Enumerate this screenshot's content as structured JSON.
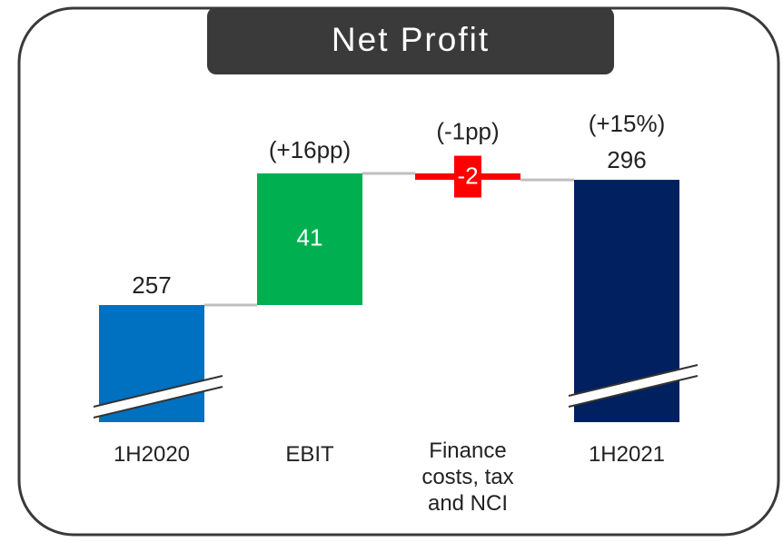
{
  "chart_data": {
    "type": "waterfall",
    "title": "Net Profit",
    "categories": [
      "1H2020",
      "EBIT",
      "Finance costs, tax and NCI",
      "1H2021"
    ],
    "values": [
      257,
      41,
      -2,
      296
    ],
    "measure": [
      "absolute",
      "relative",
      "relative",
      "total"
    ],
    "colors": [
      "#0070c0",
      "#00b050",
      "#ff0000",
      "#002060"
    ],
    "annotations": [
      null,
      "(+16pp)",
      "(-1pp)",
      "(+15%)"
    ],
    "axis_break": true
  }
}
